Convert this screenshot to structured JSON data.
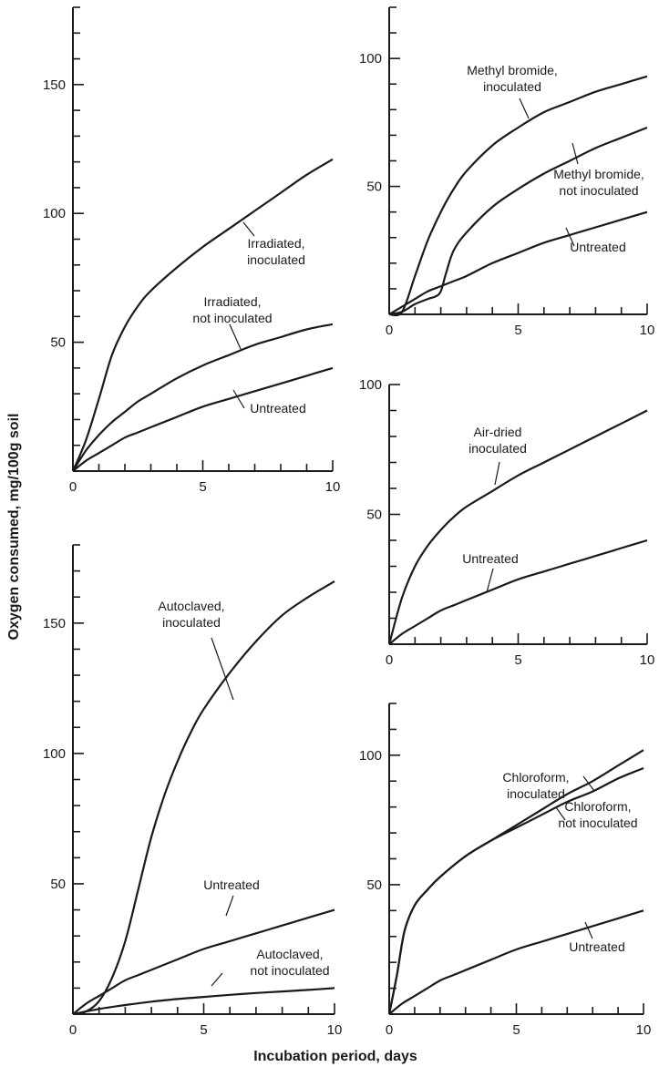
{
  "figure": {
    "ylabel": "Oxygen consumed, mg/100g soil",
    "xlabel": "Incubation period, days"
  },
  "chart_data": [
    {
      "type": "line",
      "panel": "top-left",
      "xlim": [
        0,
        10
      ],
      "ylim": [
        0,
        180
      ],
      "xticks": [
        0,
        5,
        10
      ],
      "yticks": [
        50,
        100,
        150
      ],
      "series": [
        {
          "name": "Irradiated, inoculated",
          "x": [
            0,
            0.5,
            1,
            1.5,
            2,
            2.5,
            3,
            4,
            5,
            6,
            7,
            8,
            9,
            10
          ],
          "y": [
            0,
            12,
            28,
            45,
            56,
            64,
            70,
            79,
            87,
            94,
            101,
            108,
            115,
            121
          ]
        },
        {
          "name": "Irradiated, not inoculated",
          "x": [
            0,
            0.5,
            1,
            1.5,
            2,
            2.5,
            3,
            4,
            5,
            6,
            7,
            8,
            9,
            10
          ],
          "y": [
            0,
            8,
            14,
            19,
            23,
            27,
            30,
            36,
            41,
            45,
            49,
            52,
            55,
            57
          ]
        },
        {
          "name": "Untreated",
          "x": [
            0,
            0.5,
            1,
            1.5,
            2,
            2.5,
            3,
            4,
            5,
            6,
            7,
            8,
            9,
            10
          ],
          "y": [
            0,
            4,
            7,
            10,
            13,
            15,
            17,
            21,
            25,
            28,
            31,
            34,
            37,
            40
          ]
        }
      ]
    },
    {
      "type": "line",
      "panel": "top-right",
      "xlim": [
        0,
        10
      ],
      "ylim": [
        0,
        120
      ],
      "xticks": [
        0,
        5,
        10
      ],
      "yticks": [
        50,
        100
      ],
      "series": [
        {
          "name": "Methyl bromide, inoculated",
          "x": [
            0,
            0.5,
            1,
            1.5,
            2,
            2.5,
            3,
            4,
            5,
            6,
            7,
            8,
            9,
            10
          ],
          "y": [
            0,
            1,
            15,
            29,
            40,
            49,
            56,
            66,
            73,
            79,
            83,
            87,
            90,
            93
          ]
        },
        {
          "name": "Methyl bromide, not inoculated",
          "x": [
            0,
            0.5,
            1,
            1.5,
            1.8,
            2,
            2.2,
            2.5,
            3,
            4,
            5,
            6,
            7,
            8,
            9,
            10
          ],
          "y": [
            0,
            1,
            4,
            6,
            7,
            9,
            16,
            25,
            32,
            42,
            49,
            55,
            60,
            65,
            69,
            73
          ]
        },
        {
          "name": "Untreated",
          "x": [
            0,
            0.5,
            1,
            1.5,
            2,
            2.5,
            3,
            4,
            5,
            6,
            7,
            8,
            9,
            10
          ],
          "y": [
            0,
            3,
            6,
            9,
            11,
            13,
            15,
            20,
            24,
            28,
            31,
            34,
            37,
            40
          ]
        }
      ]
    },
    {
      "type": "line",
      "panel": "middle-right",
      "xlim": [
        0,
        10
      ],
      "ylim": [
        0,
        100
      ],
      "xticks": [
        0,
        5,
        10
      ],
      "yticks": [
        50,
        100
      ],
      "series": [
        {
          "name": "Air-dried inoculated",
          "x": [
            0,
            0.5,
            1,
            1.5,
            2,
            2.5,
            3,
            4,
            5,
            6,
            7,
            8,
            9,
            10
          ],
          "y": [
            0,
            18,
            30,
            38,
            44,
            49,
            53,
            59,
            65,
            70,
            75,
            80,
            85,
            90
          ]
        },
        {
          "name": "Untreated",
          "x": [
            0,
            0.5,
            1,
            1.5,
            2,
            2.5,
            3,
            4,
            5,
            6,
            7,
            8,
            9,
            10
          ],
          "y": [
            0,
            4,
            7,
            10,
            13,
            15,
            17,
            21,
            25,
            28,
            31,
            34,
            37,
            40
          ]
        }
      ]
    },
    {
      "type": "line",
      "panel": "bottom-left",
      "xlim": [
        0,
        10
      ],
      "ylim": [
        0,
        180
      ],
      "xticks": [
        0,
        5,
        10
      ],
      "yticks": [
        50,
        100,
        150
      ],
      "series": [
        {
          "name": "Autoclaved, inoculated",
          "x": [
            0,
            0.5,
            1,
            1.5,
            2,
            2.5,
            3,
            3.5,
            4,
            4.5,
            5,
            6,
            7,
            8,
            9,
            10
          ],
          "y": [
            0,
            1,
            5,
            14,
            28,
            48,
            68,
            84,
            97,
            108,
            117,
            131,
            143,
            153,
            160,
            166
          ]
        },
        {
          "name": "Untreated",
          "x": [
            0,
            0.5,
            1,
            1.5,
            2,
            2.5,
            3,
            4,
            5,
            6,
            7,
            8,
            9,
            10
          ],
          "y": [
            0,
            4,
            7,
            10,
            13,
            15,
            17,
            21,
            25,
            28,
            31,
            34,
            37,
            40
          ]
        },
        {
          "name": "Autoclaved, not inoculated",
          "x": [
            0,
            1,
            2,
            3,
            4,
            5,
            6,
            7,
            8,
            9,
            10
          ],
          "y": [
            0,
            2,
            3.5,
            4.8,
            5.8,
            6.6,
            7.4,
            8.1,
            8.7,
            9.3,
            10
          ]
        }
      ]
    },
    {
      "type": "line",
      "panel": "bottom-right",
      "xlim": [
        0,
        10
      ],
      "ylim": [
        0,
        120
      ],
      "xticks": [
        0,
        5,
        10
      ],
      "yticks": [
        50,
        100
      ],
      "series": [
        {
          "name": "Chloroform, inoculated",
          "x": [
            0,
            0.3,
            0.6,
            1,
            1.5,
            2,
            3,
            4,
            5,
            6,
            7,
            8,
            9,
            10
          ],
          "y": [
            0,
            15,
            32,
            42,
            48,
            53,
            61,
            67,
            73,
            79,
            85,
            90,
            96,
            102
          ]
        },
        {
          "name": "Chloroform, not inoculated",
          "x": [
            0,
            0.3,
            0.6,
            1,
            1.5,
            2,
            3,
            4,
            5,
            6,
            7,
            8,
            9,
            10
          ],
          "y": [
            0,
            15,
            32,
            42,
            48,
            53,
            61,
            67,
            72,
            77,
            82,
            86,
            91,
            95
          ]
        },
        {
          "name": "Untreated",
          "x": [
            0,
            0.5,
            1,
            1.5,
            2,
            2.5,
            3,
            4,
            5,
            6,
            7,
            8,
            9,
            10
          ],
          "y": [
            0,
            4,
            7,
            10,
            13,
            15,
            17,
            21,
            25,
            28,
            31,
            34,
            37,
            40
          ]
        }
      ]
    }
  ],
  "curve_labels": [
    {
      "panel": 0,
      "series": 0,
      "lines": [
        "Irradiated,",
        "inoculated"
      ]
    },
    {
      "panel": 0,
      "series": 1,
      "lines": [
        "Irradiated,",
        "not inoculated"
      ]
    },
    {
      "panel": 0,
      "series": 2,
      "lines": [
        "Untreated"
      ]
    },
    {
      "panel": 1,
      "series": 0,
      "lines": [
        "Methyl bromide,",
        "inoculated"
      ]
    },
    {
      "panel": 1,
      "series": 1,
      "lines": [
        "Methyl bromide,",
        "not inoculated"
      ]
    },
    {
      "panel": 1,
      "series": 2,
      "lines": [
        "Untreated"
      ]
    },
    {
      "panel": 2,
      "series": 0,
      "lines": [
        "Air-dried",
        "inoculated"
      ]
    },
    {
      "panel": 2,
      "series": 1,
      "lines": [
        "Untreated"
      ]
    },
    {
      "panel": 3,
      "series": 0,
      "lines": [
        "Autoclaved,",
        "inoculated"
      ]
    },
    {
      "panel": 3,
      "series": 1,
      "lines": [
        "Untreated"
      ]
    },
    {
      "panel": 3,
      "series": 2,
      "lines": [
        "Autoclaved,",
        "not inoculated"
      ]
    },
    {
      "panel": 4,
      "series": 0,
      "lines": [
        "Chloroform,",
        "inoculated"
      ]
    },
    {
      "panel": 4,
      "series": 1,
      "lines": [
        "Chloroform,",
        "not inoculated"
      ]
    },
    {
      "panel": 4,
      "series": 2,
      "lines": [
        "Untreated"
      ]
    }
  ]
}
